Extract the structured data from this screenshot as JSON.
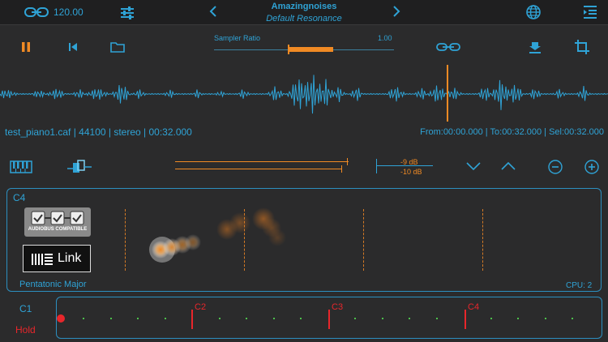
{
  "topbar": {
    "tempo": "120.00",
    "title": "Amazingnoises",
    "subtitle": "Default Resonance"
  },
  "transport": {
    "ratio_label": "Sampler Ratio",
    "ratio_value": "1.00",
    "ratio_level": 0.66
  },
  "file": {
    "info": "test_piano1.caf | 44100 | stereo | 00:32.000",
    "range": "From:00:00.000 | To:00:32.000 | Sel:00:32.000",
    "playhead_fraction": 0.735
  },
  "levels": {
    "db_top": "-9 dB",
    "db_bottom": "-10 dB"
  },
  "pad": {
    "note": "C4",
    "scale": "Pentatonic Major",
    "cpu": "CPU: 2",
    "audiobus": "AUDIOBUS COMPATIBLE",
    "link": "Link"
  },
  "keyboard": {
    "base": "C1",
    "mode": "Hold",
    "markers": [
      "C2",
      "C3",
      "C4"
    ]
  },
  "colors": {
    "accent_blue": "#2fa3d6",
    "accent_orange": "#f08a24",
    "accent_red": "#e8262b",
    "background": "#2b2b2c"
  }
}
